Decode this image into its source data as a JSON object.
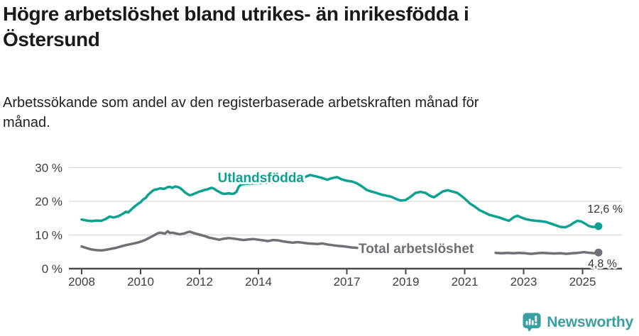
{
  "header": {
    "title_lines": [
      "Högre arbetslöshet bland utrikes- än inrikesfödda i",
      "Östersund"
    ],
    "subtitle_lines": [
      "Arbetssökande som andel av den registerbaserade arbetskraften månad för",
      "månad."
    ]
  },
  "chart_data": {
    "type": "line",
    "title": "Högre arbetslöshet bland utrikes- än inrikesfödda i Östersund",
    "subtitle": "Arbetssökande som andel av den registerbaserade arbetskraften månad för månad.",
    "unit": "%",
    "grid": "horizontal",
    "x_axis": {
      "start": 2008.0,
      "end": 2025.54,
      "ticks": [
        2008,
        2010,
        2012,
        2014,
        2017,
        2019,
        2021,
        2023,
        2025
      ]
    },
    "y_axis": {
      "range": [
        0,
        30
      ],
      "ticks": [
        {
          "value": 0,
          "label": "0 %"
        },
        {
          "value": 10,
          "label": "10 %"
        },
        {
          "value": 20,
          "label": "20 %"
        },
        {
          "value": 30,
          "label": "30 %"
        }
      ]
    },
    "colors": {
      "utlandsfodda": "#0da192",
      "total": "#6f6f75",
      "gridline": "#d9d9d9",
      "axis": "#4a4a4a",
      "axis_text": "#3e3e3e",
      "end_label_text": "#333333"
    },
    "series": [
      {
        "name": "Utlandsfödda",
        "color": "#0da192",
        "end_label": "12,6 %",
        "end_value": 12.6,
        "segments": [
          [
            [
              2008.0,
              14.6
            ],
            [
              2008.17,
              14.3
            ],
            [
              2008.33,
              14.1
            ],
            [
              2008.5,
              14.3
            ],
            [
              2008.67,
              14.2
            ],
            [
              2008.83,
              14.8
            ],
            [
              2008.95,
              15.5
            ],
            [
              2009.08,
              15.2
            ],
            [
              2009.25,
              15.6
            ],
            [
              2009.42,
              16.4
            ],
            [
              2009.5,
              16.9
            ],
            [
              2009.58,
              16.7
            ],
            [
              2009.75,
              18.1
            ],
            [
              2009.92,
              19.3
            ],
            [
              2010.0,
              19.7
            ],
            [
              2010.08,
              20.5
            ],
            [
              2010.17,
              21.0
            ],
            [
              2010.25,
              21.9
            ],
            [
              2010.33,
              22.5
            ],
            [
              2010.42,
              23.2
            ],
            [
              2010.5,
              23.5
            ],
            [
              2010.58,
              23.6
            ],
            [
              2010.67,
              23.9
            ],
            [
              2010.75,
              23.7
            ],
            [
              2010.83,
              23.8
            ],
            [
              2010.92,
              24.2
            ],
            [
              2011.0,
              24.3
            ],
            [
              2011.08,
              24.0
            ],
            [
              2011.17,
              24.4
            ],
            [
              2011.25,
              24.3
            ],
            [
              2011.33,
              24.0
            ],
            [
              2011.42,
              23.4
            ],
            [
              2011.5,
              22.7
            ],
            [
              2011.58,
              22.2
            ],
            [
              2011.67,
              21.8
            ],
            [
              2011.75,
              22.0
            ],
            [
              2011.83,
              22.3
            ],
            [
              2011.92,
              22.6
            ],
            [
              2012.0,
              22.9
            ],
            [
              2012.08,
              23.1
            ],
            [
              2012.17,
              23.4
            ],
            [
              2012.25,
              23.5
            ],
            [
              2012.33,
              23.8
            ],
            [
              2012.42,
              24.0
            ],
            [
              2012.5,
              23.7
            ],
            [
              2012.58,
              23.2
            ],
            [
              2012.67,
              22.8
            ],
            [
              2012.75,
              22.4
            ],
            [
              2012.83,
              22.2
            ],
            [
              2012.92,
              22.3
            ],
            [
              2013.0,
              22.4
            ],
            [
              2013.08,
              22.2
            ],
            [
              2013.17,
              22.3
            ],
            [
              2013.25,
              22.8
            ],
            [
              2013.33,
              24.3
            ],
            [
              2013.42,
              25.0
            ],
            [
              2013.58,
              25.2
            ],
            [
              2013.83,
              25.3
            ],
            [
              2014.08,
              25.4
            ],
            [
              2014.33,
              25.5
            ],
            [
              2014.58,
              25.7
            ],
            [
              2014.83,
              25.9
            ],
            [
              2015.08,
              26.1
            ],
            [
              2015.33,
              26.4
            ],
            [
              2015.58,
              27.2
            ],
            [
              2015.75,
              27.8
            ],
            [
              2015.92,
              27.5
            ],
            [
              2016.0,
              27.3
            ],
            [
              2016.17,
              26.9
            ],
            [
              2016.33,
              26.4
            ],
            [
              2016.5,
              26.9
            ],
            [
              2016.67,
              27.2
            ],
            [
              2016.83,
              26.5
            ],
            [
              2017.0,
              26.1
            ],
            [
              2017.17,
              25.9
            ],
            [
              2017.33,
              25.4
            ],
            [
              2017.5,
              24.5
            ],
            [
              2017.67,
              23.4
            ],
            [
              2017.83,
              22.9
            ],
            [
              2018.0,
              22.5
            ],
            [
              2018.17,
              22.0
            ],
            [
              2018.33,
              21.7
            ],
            [
              2018.5,
              21.4
            ],
            [
              2018.67,
              20.7
            ],
            [
              2018.83,
              20.2
            ],
            [
              2019.0,
              20.4
            ],
            [
              2019.17,
              21.4
            ],
            [
              2019.33,
              22.5
            ],
            [
              2019.5,
              22.8
            ],
            [
              2019.67,
              22.5
            ],
            [
              2019.83,
              21.6
            ],
            [
              2019.96,
              21.2
            ],
            [
              2020.08,
              21.9
            ],
            [
              2020.25,
              22.9
            ],
            [
              2020.42,
              23.3
            ],
            [
              2020.58,
              22.9
            ],
            [
              2020.75,
              22.5
            ],
            [
              2020.92,
              21.4
            ],
            [
              2021.0,
              20.8
            ],
            [
              2021.17,
              19.4
            ],
            [
              2021.33,
              18.5
            ],
            [
              2021.5,
              17.4
            ],
            [
              2021.67,
              16.7
            ],
            [
              2021.83,
              16.0
            ],
            [
              2022.0,
              15.6
            ],
            [
              2022.17,
              15.2
            ],
            [
              2022.33,
              14.7
            ],
            [
              2022.5,
              14.2
            ],
            [
              2022.67,
              15.3
            ],
            [
              2022.79,
              15.7
            ],
            [
              2022.92,
              15.2
            ],
            [
              2023.08,
              14.7
            ],
            [
              2023.25,
              14.4
            ],
            [
              2023.42,
              14.2
            ],
            [
              2023.58,
              14.1
            ],
            [
              2023.75,
              13.9
            ],
            [
              2023.92,
              13.4
            ],
            [
              2024.08,
              12.9
            ],
            [
              2024.25,
              12.4
            ],
            [
              2024.42,
              12.3
            ],
            [
              2024.58,
              12.9
            ],
            [
              2024.71,
              13.7
            ],
            [
              2024.83,
              14.2
            ],
            [
              2024.96,
              14.0
            ],
            [
              2025.08,
              13.4
            ],
            [
              2025.21,
              12.7
            ],
            [
              2025.33,
              12.4
            ],
            [
              2025.46,
              12.4
            ],
            [
              2025.54,
              12.6
            ]
          ]
        ]
      },
      {
        "name": "Total arbetslöshet",
        "color": "#6f6f75",
        "end_label": "4,8 %",
        "end_value": 4.8,
        "segments": [
          [
            [
              2008.0,
              6.6
            ],
            [
              2008.17,
              6.1
            ],
            [
              2008.33,
              5.7
            ],
            [
              2008.5,
              5.5
            ],
            [
              2008.67,
              5.4
            ],
            [
              2008.83,
              5.6
            ],
            [
              2009.0,
              5.9
            ],
            [
              2009.17,
              6.2
            ],
            [
              2009.33,
              6.6
            ],
            [
              2009.5,
              7.0
            ],
            [
              2009.67,
              7.3
            ],
            [
              2009.83,
              7.6
            ],
            [
              2010.0,
              8.0
            ],
            [
              2010.17,
              8.6
            ],
            [
              2010.33,
              9.3
            ],
            [
              2010.5,
              10.1
            ],
            [
              2010.58,
              10.5
            ],
            [
              2010.67,
              10.7
            ],
            [
              2010.83,
              10.4
            ],
            [
              2010.92,
              11.1
            ],
            [
              2011.0,
              10.6
            ],
            [
              2011.08,
              10.7
            ],
            [
              2011.17,
              10.5
            ],
            [
              2011.33,
              10.2
            ],
            [
              2011.5,
              10.5
            ],
            [
              2011.58,
              10.8
            ],
            [
              2011.67,
              11.0
            ],
            [
              2011.83,
              10.5
            ],
            [
              2012.0,
              10.1
            ],
            [
              2012.17,
              9.7
            ],
            [
              2012.33,
              9.2
            ],
            [
              2012.5,
              8.9
            ],
            [
              2012.67,
              8.6
            ],
            [
              2012.83,
              8.9
            ],
            [
              2013.0,
              9.1
            ],
            [
              2013.17,
              8.9
            ],
            [
              2013.33,
              8.7
            ],
            [
              2013.5,
              8.5
            ],
            [
              2013.67,
              8.7
            ],
            [
              2013.83,
              8.8
            ],
            [
              2014.0,
              8.6
            ],
            [
              2014.17,
              8.4
            ],
            [
              2014.33,
              8.2
            ],
            [
              2014.5,
              8.5
            ],
            [
              2014.67,
              8.4
            ],
            [
              2014.83,
              8.1
            ],
            [
              2015.0,
              7.9
            ],
            [
              2015.17,
              7.7
            ],
            [
              2015.33,
              7.9
            ],
            [
              2015.5,
              7.7
            ],
            [
              2015.67,
              7.5
            ],
            [
              2015.83,
              7.4
            ],
            [
              2016.0,
              7.3
            ],
            [
              2016.17,
              7.5
            ],
            [
              2016.33,
              7.2
            ],
            [
              2016.5,
              7.0
            ],
            [
              2016.67,
              6.8
            ],
            [
              2016.83,
              6.7
            ],
            [
              2017.0,
              6.5
            ],
            [
              2017.17,
              6.3
            ],
            [
              2017.35,
              6.2
            ]
          ],
          [
            [
              2022.05,
              4.7
            ],
            [
              2022.25,
              4.6
            ],
            [
              2022.45,
              4.7
            ],
            [
              2022.65,
              4.6
            ],
            [
              2022.85,
              4.7
            ],
            [
              2023.05,
              4.6
            ],
            [
              2023.25,
              4.4
            ],
            [
              2023.45,
              4.6
            ],
            [
              2023.65,
              4.7
            ],
            [
              2023.85,
              4.6
            ],
            [
              2024.05,
              4.5
            ],
            [
              2024.25,
              4.6
            ],
            [
              2024.45,
              4.4
            ],
            [
              2024.65,
              4.6
            ],
            [
              2024.85,
              4.7
            ],
            [
              2025.05,
              4.9
            ],
            [
              2025.25,
              4.7
            ],
            [
              2025.42,
              4.6
            ],
            [
              2025.54,
              4.8
            ]
          ]
        ]
      }
    ]
  },
  "footer": {
    "brand": "Newsworthy",
    "brand_color": "#38a0a2"
  }
}
